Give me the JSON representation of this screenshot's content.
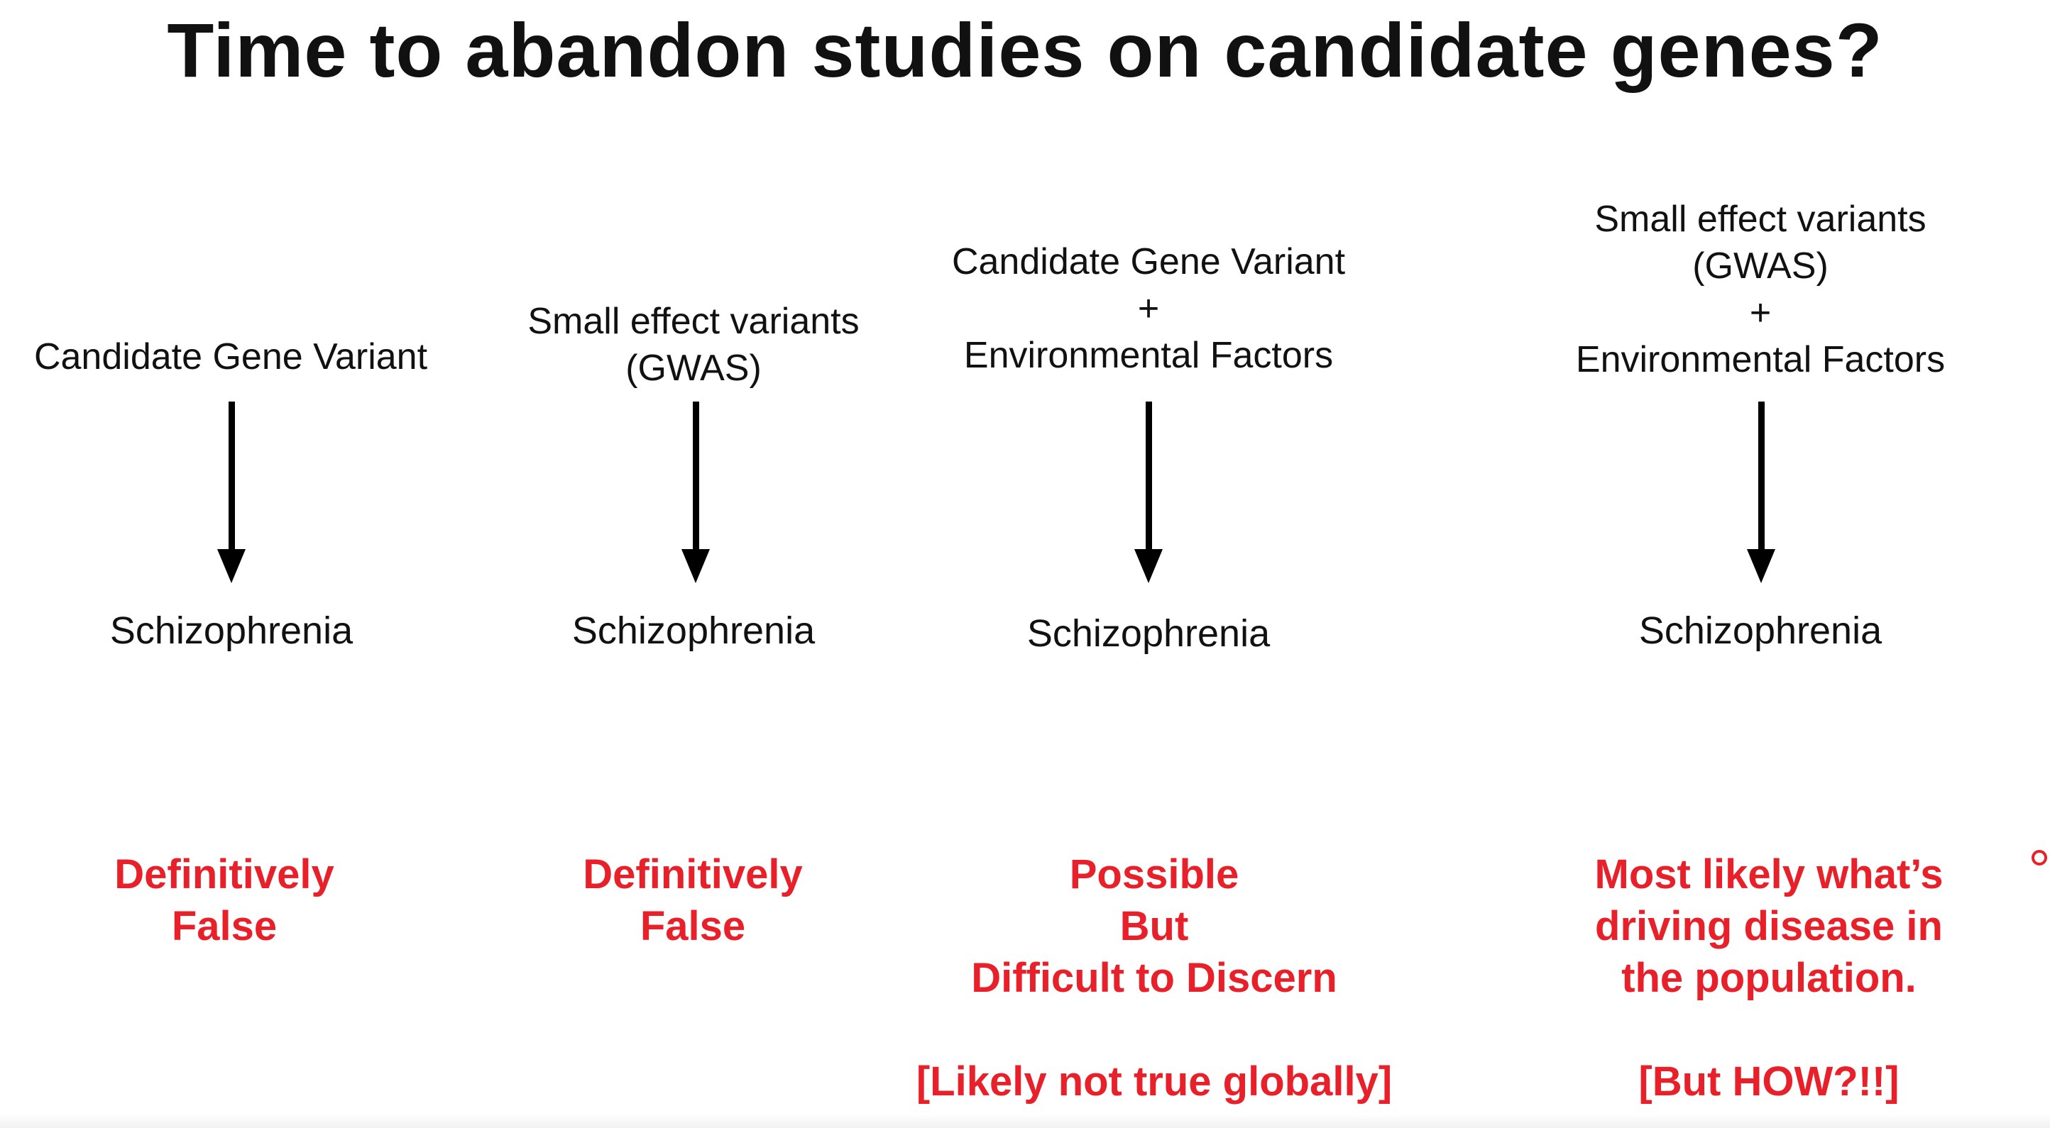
{
  "title": "Time to abandon studies on candidate genes?",
  "columns": [
    {
      "cause": [
        "Candidate Gene Variant"
      ],
      "outcome": "Schizophrenia",
      "verdict": [
        "Definitively",
        "False"
      ],
      "note": ""
    },
    {
      "cause": [
        "Small effect variants",
        "(GWAS)"
      ],
      "outcome": "Schizophrenia",
      "verdict": [
        "Definitively",
        "False"
      ],
      "note": ""
    },
    {
      "cause": [
        "Candidate Gene Variant",
        "+",
        "Environmental Factors"
      ],
      "outcome": "Schizophrenia",
      "verdict": [
        "Possible",
        "But",
        "Difficult to Discern"
      ],
      "note": "[Likely not true globally]"
    },
    {
      "cause": [
        "Small effect variants",
        "(GWAS)",
        "+",
        "Environmental Factors"
      ],
      "outcome": "Schizophrenia",
      "verdict": [
        "Most likely what’s",
        "driving disease in",
        "the population."
      ],
      "note": "[But HOW?!!]"
    }
  ],
  "colors": {
    "text": "#111111",
    "verdict": "#e8202a",
    "arrow": "#000000"
  }
}
